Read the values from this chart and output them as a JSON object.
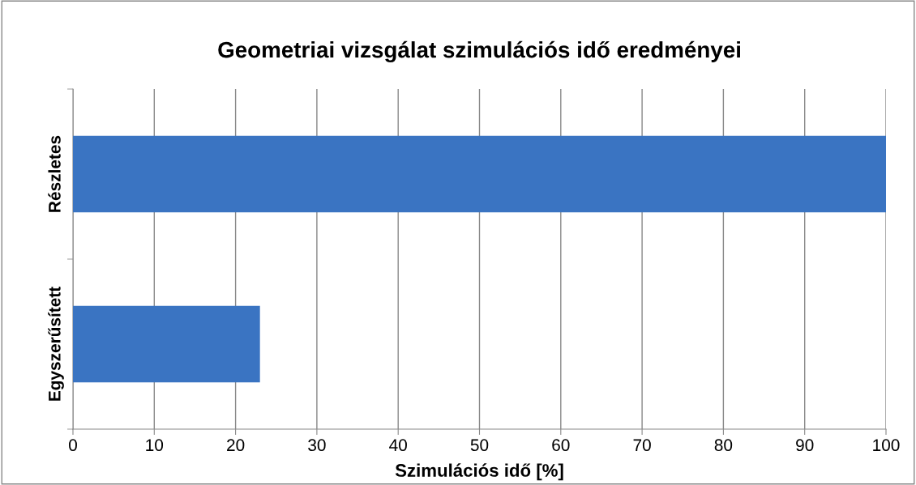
{
  "chart_data": {
    "type": "bar",
    "orientation": "horizontal",
    "title": "Geometriai vizsgálat szimulációs idő eredményei",
    "xlabel": "Szimulációs idő [%]",
    "categories": [
      "Részletes",
      "Egyszerűsített"
    ],
    "values": [
      100,
      23
    ],
    "color": "#3a74c2",
    "xlim": [
      0,
      100
    ],
    "xticks": [
      0,
      10,
      20,
      30,
      40,
      50,
      60,
      70,
      80,
      90,
      100
    ],
    "grid": "x"
  }
}
